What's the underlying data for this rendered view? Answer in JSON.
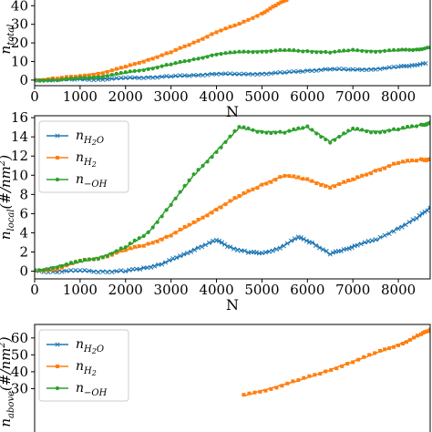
{
  "chart_data": [
    {
      "type": "line",
      "title": "",
      "xlabel": "N",
      "ylabel": "n",
      "ylabel_sub": "total",
      "xlim": [
        0,
        8700
      ],
      "ylim": [
        -3,
        47
      ],
      "xticks": [
        0,
        1000,
        2000,
        3000,
        4000,
        5000,
        6000,
        7000,
        8000
      ],
      "yticks": [
        0,
        10,
        20,
        30,
        40
      ],
      "legend": null,
      "series": [
        {
          "key": "h2o",
          "color": "#1f77b4",
          "marker": "x",
          "x": [
            0,
            400,
            1000,
            1500,
            2000,
            2500,
            3000,
            3500,
            4000,
            4500,
            5000,
            5500,
            6000,
            6500,
            7000,
            7500,
            8000,
            8300,
            8600
          ],
          "y": [
            0,
            0,
            0.3,
            0.5,
            1,
            1.5,
            2,
            2.5,
            3.5,
            3,
            3.5,
            4,
            5,
            6,
            5.5,
            6,
            7,
            8,
            9
          ]
        },
        {
          "key": "h2",
          "color": "#ff7f0e",
          "marker": "s",
          "x": [
            0,
            500,
            1000,
            1500,
            2000,
            2500,
            3000,
            3500,
            4000,
            4500,
            5000,
            5300,
            5600
          ],
          "y": [
            0,
            1,
            2,
            4,
            7,
            11,
            15,
            20,
            26,
            30,
            36,
            40,
            44
          ]
        },
        {
          "key": "oh",
          "color": "#2ca02c",
          "marker": "o",
          "x": [
            0,
            500,
            1000,
            1500,
            2000,
            2500,
            3000,
            3500,
            4000,
            4500,
            5000,
            5500,
            6000,
            6500,
            7000,
            7500,
            8000,
            8400,
            8700
          ],
          "y": [
            0,
            0,
            1,
            2,
            4,
            6,
            8.5,
            11,
            14,
            15,
            15.5,
            16,
            15.5,
            15,
            16,
            15.5,
            16,
            16.5,
            17.5
          ]
        }
      ]
    },
    {
      "type": "line",
      "title": "",
      "xlabel": "N",
      "ylabel": "n",
      "ylabel_sub": "local",
      "ylabel_rest": "(#/nm",
      "ylabel_sup": "2",
      "ylabel_end": ")",
      "xlim": [
        0,
        8700
      ],
      "ylim": [
        -0.8,
        16.2
      ],
      "xticks": [
        0,
        1000,
        2000,
        3000,
        4000,
        5000,
        6000,
        7000,
        8000
      ],
      "yticks": [
        0,
        2,
        4,
        6,
        8,
        10,
        12,
        14,
        16
      ],
      "legend": "upper-left",
      "series": [
        {
          "key": "h2o",
          "color": "#1f77b4",
          "marker": "x",
          "x": [
            0,
            500,
            1000,
            1500,
            2000,
            2400,
            2800,
            3200,
            3600,
            4000,
            4300,
            4700,
            5000,
            5400,
            5800,
            6100,
            6500,
            6800,
            7100,
            7500,
            8000,
            8400,
            8700
          ],
          "y": [
            0,
            0,
            0,
            0,
            0,
            0.3,
            0.8,
            1.5,
            2.5,
            3.2,
            2.5,
            2,
            1.8,
            2.5,
            3.5,
            3,
            1.8,
            2.2,
            2.8,
            3.2,
            4.5,
            5.5,
            6.6
          ]
        },
        {
          "key": "h2",
          "color": "#ff7f0e",
          "marker": "s",
          "x": [
            0,
            500,
            1000,
            1500,
            2000,
            2500,
            3000,
            3500,
            4000,
            4500,
            5000,
            5500,
            6000,
            6500,
            7000,
            7500,
            8000,
            8500,
            8700
          ],
          "y": [
            0,
            0.3,
            1,
            1.5,
            2.2,
            2.8,
            3.8,
            5,
            6.5,
            7.8,
            9,
            10,
            9.5,
            8.8,
            9.5,
            10.5,
            11.3,
            11.6,
            11.7
          ]
        },
        {
          "key": "oh",
          "color": "#2ca02c",
          "marker": "o",
          "x": [
            0,
            500,
            1000,
            1500,
            2000,
            2500,
            3000,
            3500,
            4000,
            4500,
            5000,
            5500,
            6000,
            6500,
            7000,
            7500,
            8000,
            8500,
            8700
          ],
          "y": [
            0,
            0.5,
            1,
            1.5,
            2.5,
            4,
            7,
            10,
            12.5,
            15,
            14.5,
            14.5,
            15,
            13.5,
            14.8,
            14.5,
            14.8,
            15.2,
            15.5
          ]
        }
      ]
    },
    {
      "type": "line",
      "title": "",
      "xlabel": "",
      "ylabel": "n",
      "ylabel_sub": "above",
      "ylabel_rest": "(#/nm",
      "ylabel_sup": "2",
      "ylabel_end": ")",
      "xlim": [
        0,
        8700
      ],
      "ylim": [
        0,
        68
      ],
      "xticks": [],
      "yticks": [
        30,
        40,
        50,
        60
      ],
      "legend": "upper-left",
      "series": [
        {
          "key": "h2o",
          "color": "#1f77b4",
          "marker": "x",
          "x": [],
          "y": []
        },
        {
          "key": "h2",
          "color": "#ff7f0e",
          "marker": "s",
          "x": [
            4600,
            5200,
            5800,
            6400,
            7000,
            7600,
            8100,
            8500,
            8700
          ],
          "y": [
            26,
            30,
            35,
            40,
            46,
            52,
            57,
            62,
            65
          ]
        },
        {
          "key": "oh",
          "color": "#2ca02c",
          "marker": "o",
          "x": [],
          "y": []
        }
      ]
    }
  ],
  "legend_labels": {
    "h2o": {
      "base": "n",
      "sub": "H",
      "sub2": "2",
      "sub3": "O"
    },
    "h2": {
      "base": "n",
      "sub": "H",
      "sub2": "2",
      "sub3": ""
    },
    "oh": {
      "base": "n",
      "sub": "−OH",
      "sub2": "",
      "sub3": ""
    }
  }
}
